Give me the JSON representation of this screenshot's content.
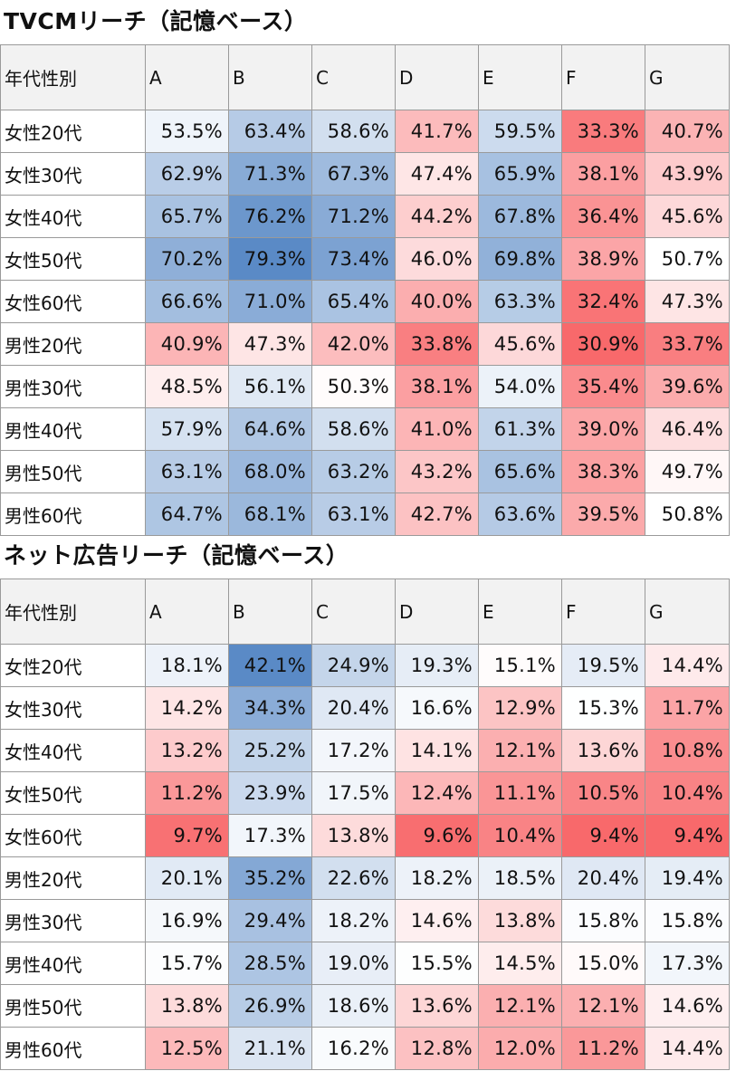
{
  "chart_data": [
    {
      "type": "heatmap",
      "title": "TVCMリーチ（記憶ベース）",
      "corner_label": "年代性別",
      "columns": [
        "A",
        "B",
        "C",
        "D",
        "E",
        "F",
        "G"
      ],
      "rows": [
        "女性20代",
        "女性30代",
        "女性40代",
        "女性50代",
        "女性60代",
        "男性20代",
        "男性30代",
        "男性40代",
        "男性50代",
        "男性60代"
      ],
      "values": [
        [
          53.5,
          63.4,
          58.6,
          41.7,
          59.5,
          33.3,
          40.7
        ],
        [
          62.9,
          71.3,
          67.3,
          47.4,
          65.9,
          38.1,
          43.9
        ],
        [
          65.7,
          76.2,
          71.2,
          44.2,
          67.8,
          36.4,
          45.6
        ],
        [
          70.2,
          79.3,
          73.4,
          46.0,
          69.8,
          38.9,
          50.7
        ],
        [
          66.6,
          71.0,
          65.4,
          40.0,
          63.3,
          32.4,
          47.3
        ],
        [
          40.9,
          47.3,
          42.0,
          33.8,
          45.6,
          30.9,
          33.7
        ],
        [
          48.5,
          56.1,
          50.3,
          38.1,
          54.0,
          35.4,
          39.6
        ],
        [
          57.9,
          64.6,
          58.6,
          41.0,
          61.3,
          39.0,
          46.4
        ],
        [
          63.1,
          68.0,
          63.2,
          43.2,
          65.6,
          38.3,
          49.7
        ],
        [
          64.7,
          68.1,
          63.1,
          42.7,
          63.6,
          39.5,
          50.8
        ]
      ],
      "value_suffix": "%",
      "colors": {
        "low": "#f8696b",
        "mid": "#ffffff",
        "high": "#5a8ac6"
      }
    },
    {
      "type": "heatmap",
      "title": "ネット広告リーチ（記憶ベース）",
      "corner_label": "年代性別",
      "columns": [
        "A",
        "B",
        "C",
        "D",
        "E",
        "F",
        "G"
      ],
      "rows": [
        "女性20代",
        "女性30代",
        "女性40代",
        "女性50代",
        "女性60代",
        "男性20代",
        "男性30代",
        "男性40代",
        "男性50代",
        "男性60代"
      ],
      "values": [
        [
          18.1,
          42.1,
          24.9,
          19.3,
          15.1,
          19.5,
          14.4
        ],
        [
          14.2,
          34.3,
          20.4,
          16.6,
          12.9,
          15.3,
          11.7
        ],
        [
          13.2,
          25.2,
          17.2,
          14.1,
          12.1,
          13.6,
          10.8
        ],
        [
          11.2,
          23.9,
          17.5,
          12.4,
          11.1,
          10.5,
          10.4
        ],
        [
          9.7,
          17.3,
          13.8,
          9.6,
          10.4,
          9.4,
          9.4
        ],
        [
          20.1,
          35.2,
          22.6,
          18.2,
          18.5,
          20.4,
          19.4
        ],
        [
          16.9,
          29.4,
          18.2,
          14.6,
          13.8,
          15.8,
          15.8
        ],
        [
          15.7,
          28.5,
          19.0,
          15.5,
          14.5,
          15.0,
          17.3
        ],
        [
          13.8,
          26.9,
          18.6,
          13.6,
          12.1,
          12.1,
          14.6
        ],
        [
          12.5,
          21.1,
          16.2,
          12.8,
          12.0,
          11.2,
          14.4
        ]
      ],
      "value_suffix": "%",
      "colors": {
        "low": "#f8696b",
        "mid": "#ffffff",
        "high": "#5a8ac6"
      }
    }
  ]
}
